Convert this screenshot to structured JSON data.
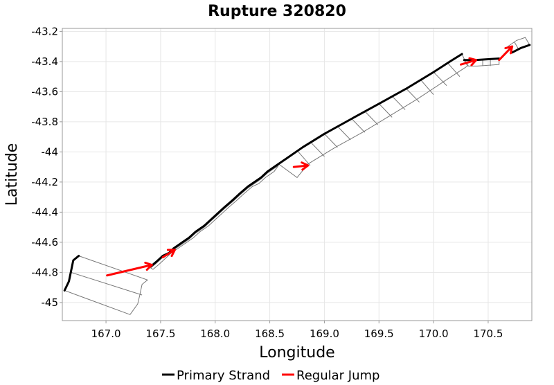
{
  "chart_data": {
    "type": "line",
    "title": "Rupture 320820",
    "xlabel": "Longitude",
    "ylabel": "Latitude",
    "xlim": [
      166.6,
      170.9
    ],
    "ylim": [
      -45.12,
      -43.18
    ],
    "xticks": [
      "167.0",
      "167.5",
      "168.0",
      "168.5",
      "169.0",
      "169.5",
      "170.0",
      "170.5"
    ],
    "yticks": [
      "-43.2",
      "-43.4",
      "-43.6",
      "-43.8",
      "-44",
      "-44.2",
      "-44.4",
      "-44.6",
      "-44.8",
      "-45"
    ],
    "grid": true,
    "legend_position": "bottom",
    "series": [
      {
        "name": "Primary Strand",
        "color": "#000000",
        "segments": [
          [
            [
              166.62,
              -44.92
            ],
            [
              166.66,
              -44.86
            ],
            [
              166.7,
              -44.72
            ],
            [
              166.75,
              -44.69
            ]
          ],
          [
            [
              167.41,
              -44.76
            ],
            [
              167.46,
              -44.73
            ],
            [
              167.52,
              -44.69
            ],
            [
              167.58,
              -44.67
            ],
            [
              167.62,
              -44.64
            ],
            [
              167.7,
              -44.6
            ],
            [
              167.76,
              -44.57
            ],
            [
              167.82,
              -44.53
            ],
            [
              167.9,
              -44.49
            ],
            [
              167.96,
              -44.45
            ],
            [
              168.02,
              -44.41
            ],
            [
              168.08,
              -44.37
            ],
            [
              168.16,
              -44.32
            ],
            [
              168.22,
              -44.28
            ],
            [
              168.3,
              -44.23
            ],
            [
              168.36,
              -44.2
            ],
            [
              168.42,
              -44.17
            ],
            [
              168.48,
              -44.13
            ],
            [
              168.58,
              -44.08
            ],
            [
              168.66,
              -44.04
            ],
            [
              168.8,
              -43.97
            ],
            [
              169.0,
              -43.88
            ],
            [
              169.25,
              -43.78
            ],
            [
              169.5,
              -43.68
            ],
            [
              169.75,
              -43.58
            ],
            [
              170.0,
              -43.47
            ],
            [
              170.15,
              -43.4
            ],
            [
              170.26,
              -43.35
            ]
          ],
          [
            [
              170.28,
              -43.39
            ],
            [
              170.38,
              -43.39
            ],
            [
              170.6,
              -43.38
            ]
          ],
          [
            [
              170.72,
              -43.34
            ],
            [
              170.8,
              -43.31
            ],
            [
              170.88,
              -43.29
            ]
          ]
        ]
      },
      {
        "name": "Regular Jump",
        "color": "#ff0000",
        "segments": [
          [
            [
              167.01,
              -44.82
            ],
            [
              167.42,
              -44.75
            ]
          ],
          [
            [
              167.52,
              -44.7
            ],
            [
              167.63,
              -44.65
            ]
          ],
          [
            [
              168.72,
              -44.1
            ],
            [
              168.85,
              -44.09
            ]
          ],
          [
            [
              170.25,
              -43.42
            ],
            [
              170.39,
              -43.39
            ]
          ],
          [
            [
              170.6,
              -43.39
            ],
            [
              170.72,
              -43.3
            ]
          ]
        ]
      }
    ],
    "fault_sections": {
      "color": "#777777",
      "polygons": [
        [
          [
            166.62,
            -44.92
          ],
          [
            166.66,
            -44.86
          ],
          [
            166.7,
            -44.72
          ],
          [
            166.75,
            -44.69
          ],
          [
            167.38,
            -44.85
          ],
          [
            167.33,
            -44.88
          ],
          [
            167.31,
            -44.95
          ],
          [
            167.29,
            -45.01
          ],
          [
            167.22,
            -45.08
          ]
        ],
        [
          [
            167.41,
            -44.77
          ],
          [
            167.46,
            -44.74
          ],
          [
            167.52,
            -44.7
          ],
          [
            167.58,
            -44.68
          ],
          [
            167.62,
            -44.65
          ],
          [
            167.7,
            -44.61
          ],
          [
            167.76,
            -44.58
          ],
          [
            167.82,
            -44.54
          ],
          [
            167.9,
            -44.5
          ],
          [
            167.96,
            -44.46
          ],
          [
            168.02,
            -44.42
          ],
          [
            168.08,
            -44.38
          ],
          [
            168.16,
            -44.33
          ],
          [
            168.22,
            -44.29
          ],
          [
            168.3,
            -44.24
          ],
          [
            168.36,
            -44.21
          ],
          [
            168.42,
            -44.18
          ],
          [
            168.48,
            -44.14
          ],
          [
            168.58,
            -44.09
          ],
          [
            168.54,
            -44.13
          ],
          [
            168.46,
            -44.17
          ],
          [
            168.4,
            -44.21
          ],
          [
            168.34,
            -44.23
          ],
          [
            168.26,
            -44.28
          ],
          [
            168.2,
            -44.32
          ],
          [
            168.12,
            -44.37
          ],
          [
            168.06,
            -44.41
          ],
          [
            168.0,
            -44.45
          ],
          [
            167.94,
            -44.49
          ],
          [
            167.86,
            -44.53
          ],
          [
            167.8,
            -44.57
          ],
          [
            167.74,
            -44.6
          ],
          [
            167.66,
            -44.64
          ],
          [
            167.6,
            -44.67
          ],
          [
            167.54,
            -44.71
          ],
          [
            167.48,
            -44.75
          ],
          [
            167.43,
            -44.78
          ]
        ],
        [
          [
            168.58,
            -44.08
          ],
          [
            168.66,
            -44.04
          ],
          [
            168.8,
            -43.97
          ],
          [
            169.0,
            -43.88
          ],
          [
            169.25,
            -43.78
          ],
          [
            169.5,
            -43.68
          ],
          [
            169.75,
            -43.58
          ],
          [
            170.0,
            -43.47
          ],
          [
            170.15,
            -43.4
          ],
          [
            170.26,
            -43.35
          ],
          [
            170.31,
            -43.43
          ],
          [
            170.1,
            -43.53
          ],
          [
            169.85,
            -43.65
          ],
          [
            169.6,
            -43.76
          ],
          [
            169.35,
            -43.87
          ],
          [
            169.1,
            -43.97
          ],
          [
            168.85,
            -44.08
          ],
          [
            168.75,
            -44.17
          ]
        ],
        [
          [
            170.28,
            -43.39
          ],
          [
            170.38,
            -43.39
          ],
          [
            170.6,
            -43.38
          ],
          [
            170.6,
            -43.42
          ],
          [
            170.4,
            -43.43
          ],
          [
            170.32,
            -43.43
          ]
        ],
        [
          [
            170.72,
            -43.34
          ],
          [
            170.8,
            -43.31
          ],
          [
            170.88,
            -43.29
          ],
          [
            170.84,
            -43.24
          ],
          [
            170.76,
            -43.26
          ],
          [
            170.68,
            -43.3
          ]
        ]
      ],
      "dividers": [
        [
          [
            166.68,
            -44.8
          ],
          [
            167.33,
            -44.95
          ]
        ],
        [
          [
            168.75,
            -43.99
          ],
          [
            168.87,
            -44.09
          ]
        ],
        [
          [
            168.88,
            -43.94
          ],
          [
            169.0,
            -44.03
          ]
        ],
        [
          [
            169.0,
            -43.88
          ],
          [
            169.12,
            -43.97
          ]
        ],
        [
          [
            169.12,
            -43.83
          ],
          [
            169.24,
            -43.92
          ]
        ],
        [
          [
            169.25,
            -43.78
          ],
          [
            169.37,
            -43.87
          ]
        ],
        [
          [
            169.37,
            -43.73
          ],
          [
            169.49,
            -43.82
          ]
        ],
        [
          [
            169.5,
            -43.68
          ],
          [
            169.62,
            -43.77
          ]
        ],
        [
          [
            169.62,
            -43.63
          ],
          [
            169.74,
            -43.72
          ]
        ],
        [
          [
            169.75,
            -43.58
          ],
          [
            169.87,
            -43.67
          ]
        ],
        [
          [
            169.88,
            -43.52
          ],
          [
            170.0,
            -43.62
          ]
        ],
        [
          [
            170.0,
            -43.47
          ],
          [
            170.12,
            -43.56
          ]
        ],
        [
          [
            170.13,
            -43.41
          ],
          [
            170.24,
            -43.5
          ]
        ],
        [
          [
            170.45,
            -43.39
          ],
          [
            170.45,
            -43.43
          ]
        ],
        [
          [
            170.52,
            -43.39
          ],
          [
            170.52,
            -43.43
          ]
        ],
        [
          [
            170.78,
            -43.32
          ],
          [
            170.74,
            -43.27
          ]
        ]
      ]
    }
  }
}
